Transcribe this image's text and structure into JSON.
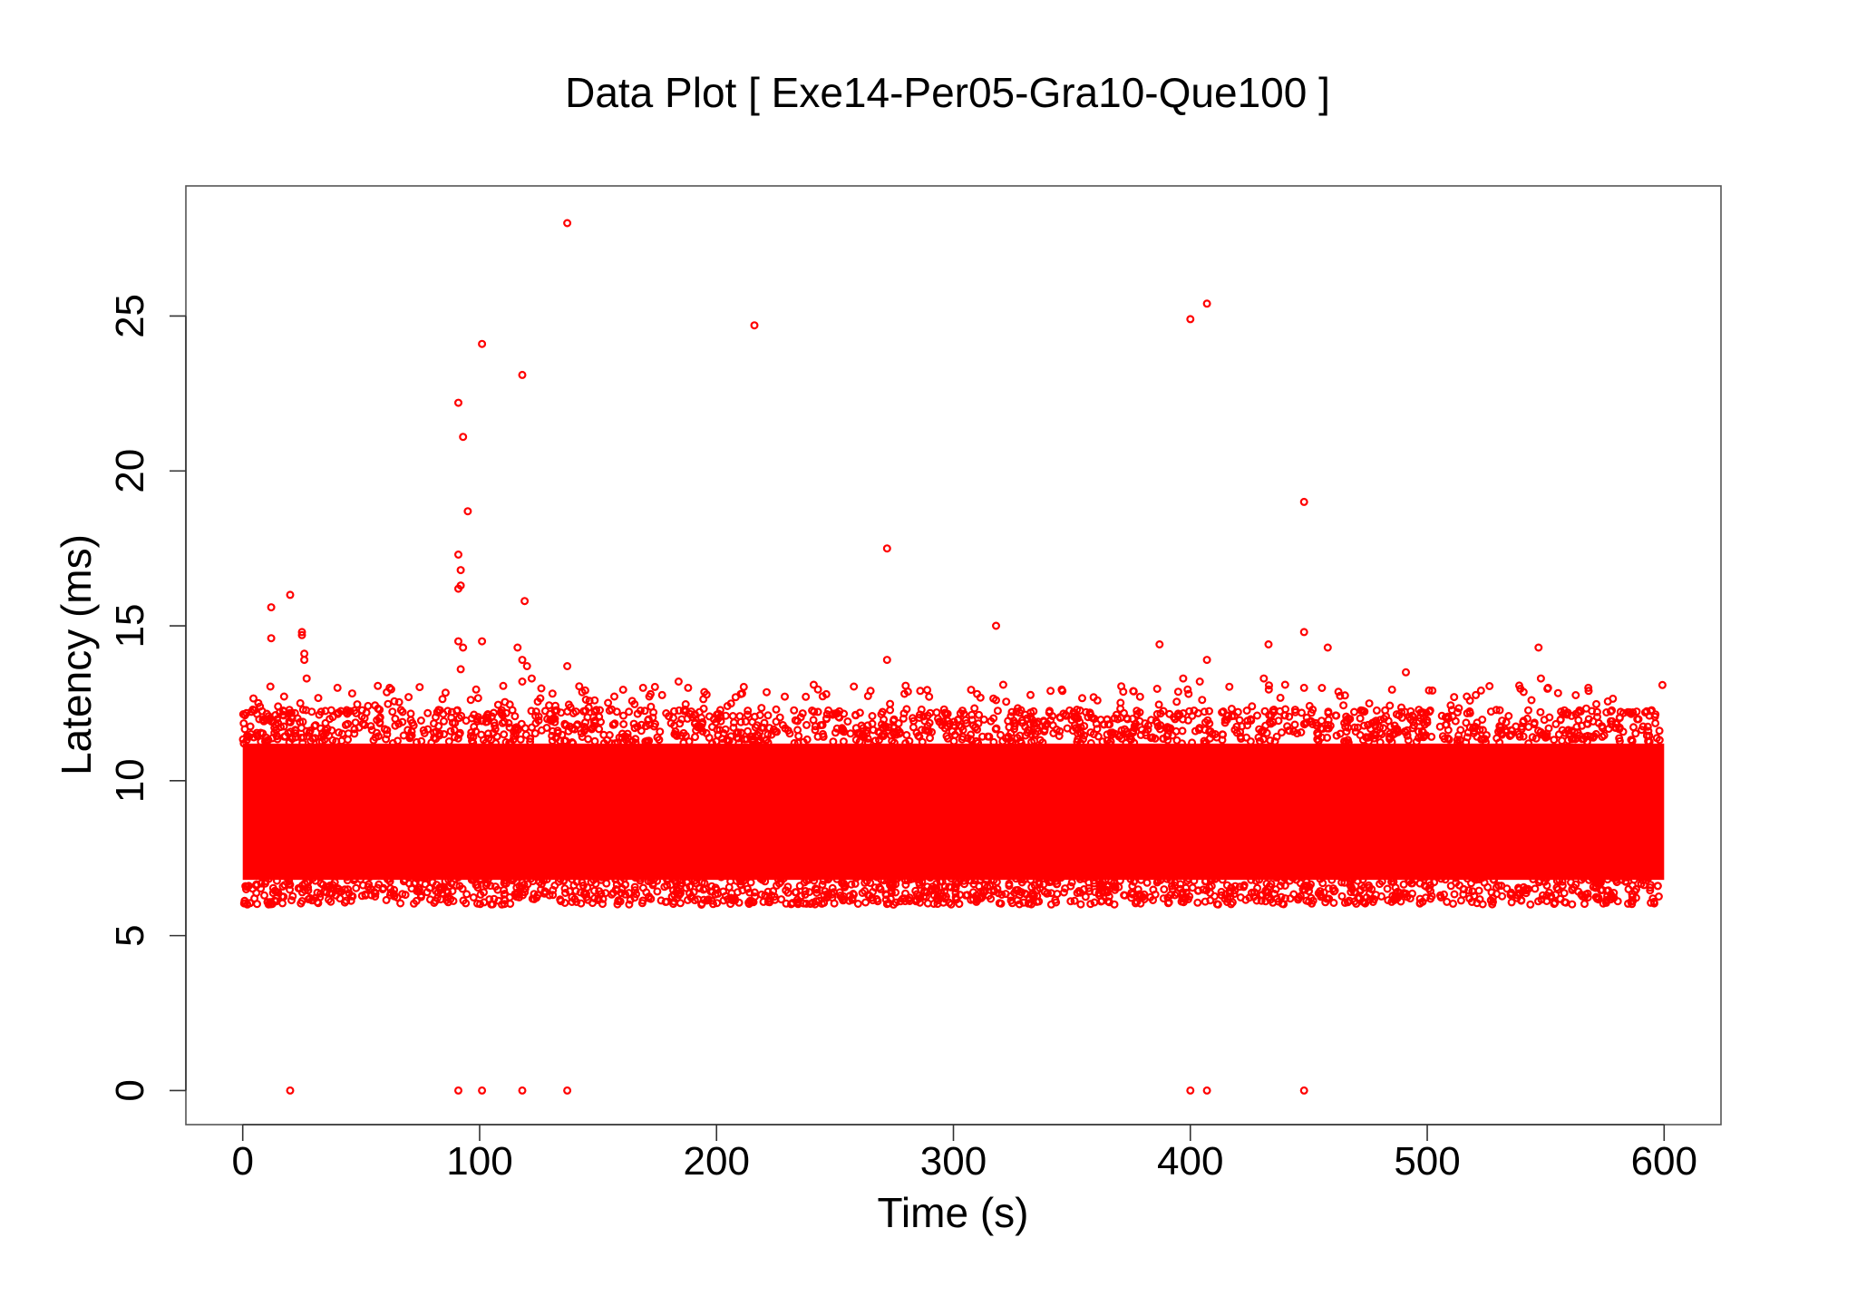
{
  "chart_data": {
    "type": "scatter",
    "title": "Data Plot [ Exe14-Per05-Gra10-Que100 ]",
    "xlabel": "Time (s)",
    "ylabel": "Latency (ms)",
    "xlim": [
      -24,
      624
    ],
    "ylim": [
      -1.1,
      29.2
    ],
    "xticks": [
      0,
      100,
      200,
      300,
      400,
      500,
      600
    ],
    "yticks": [
      0,
      5,
      10,
      15,
      20,
      25
    ],
    "grid": false,
    "legend": "none",
    "colors": {
      "marker": "#ff0000"
    },
    "series": [
      {
        "marker": "open-circle",
        "bulk_band": {
          "x_range": [
            0,
            600
          ],
          "y_range": [
            6.5,
            11.6
          ],
          "dense_y_range": [
            6.8,
            11.2
          ]
        },
        "outliers": [
          [
            137,
            28.0
          ],
          [
            407,
            25.4
          ],
          [
            400,
            24.9
          ],
          [
            216,
            24.7
          ],
          [
            101,
            24.1
          ],
          [
            118,
            23.1
          ],
          [
            91,
            22.2
          ],
          [
            93,
            21.1
          ],
          [
            95,
            18.7
          ],
          [
            448,
            19.0
          ],
          [
            272,
            17.5
          ],
          [
            91,
            17.3
          ],
          [
            92,
            16.8
          ],
          [
            92,
            16.3
          ],
          [
            91,
            16.2
          ],
          [
            20,
            16.0
          ],
          [
            119,
            15.8
          ],
          [
            12,
            15.6
          ],
          [
            318,
            15.0
          ],
          [
            25,
            14.8
          ],
          [
            25,
            14.7
          ],
          [
            12,
            14.6
          ],
          [
            101,
            14.5
          ],
          [
            91,
            14.5
          ],
          [
            93,
            14.3
          ],
          [
            116,
            14.3
          ],
          [
            387,
            14.4
          ],
          [
            433,
            14.4
          ],
          [
            448,
            14.8
          ],
          [
            458,
            14.3
          ],
          [
            547,
            14.3
          ],
          [
            26,
            14.1
          ],
          [
            26,
            13.9
          ],
          [
            118,
            13.9
          ],
          [
            272,
            13.9
          ],
          [
            407,
            13.9
          ],
          [
            120,
            13.7
          ],
          [
            137,
            13.7
          ],
          [
            27,
            13.3
          ],
          [
            92,
            13.6
          ],
          [
            118,
            13.2
          ],
          [
            122,
            13.3
          ],
          [
            397,
            13.3
          ],
          [
            404,
            13.2
          ],
          [
            431,
            13.3
          ],
          [
            440,
            13.1
          ],
          [
            448,
            13.0
          ],
          [
            491,
            13.5
          ],
          [
            548,
            13.3
          ],
          [
            551,
            13.0
          ],
          [
            568,
            13.0
          ],
          [
            184,
            13.2
          ],
          [
            188,
            13.0
          ],
          [
            169,
            13.0
          ],
          [
            241,
            13.1
          ],
          [
            286,
            12.9
          ],
          [
            310,
            12.8
          ],
          [
            321,
            13.1
          ],
          [
            341,
            12.9
          ],
          [
            346,
            12.9
          ],
          [
            40,
            13.0
          ],
          [
            62,
            13.0
          ],
          [
            70,
            12.7
          ],
          [
            544,
            12.6
          ],
          [
            318,
            12.6
          ],
          [
            265,
            12.9
          ]
        ],
        "zero_points": [
          [
            20,
            0
          ],
          [
            91,
            0
          ],
          [
            101,
            0
          ],
          [
            118,
            0
          ],
          [
            137,
            0
          ],
          [
            400,
            0
          ],
          [
            407,
            0
          ],
          [
            448,
            0
          ]
        ]
      }
    ]
  }
}
